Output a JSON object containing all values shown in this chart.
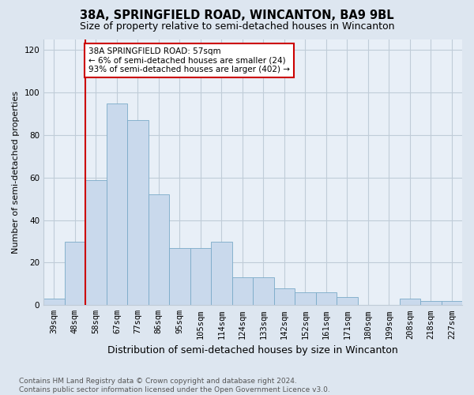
{
  "title": "38A, SPRINGFIELD ROAD, WINCANTON, BA9 9BL",
  "subtitle": "Size of property relative to semi-detached houses in Wincanton",
  "xlabel": "Distribution of semi-detached houses by size in Wincanton",
  "ylabel": "Number of semi-detached properties",
  "categories": [
    "39sqm",
    "48sqm",
    "58sqm",
    "67sqm",
    "77sqm",
    "86sqm",
    "95sqm",
    "105sqm",
    "114sqm",
    "124sqm",
    "133sqm",
    "142sqm",
    "152sqm",
    "161sqm",
    "171sqm",
    "180sqm",
    "199sqm",
    "208sqm",
    "218sqm",
    "227sqm"
  ],
  "values": [
    3,
    30,
    59,
    95,
    87,
    52,
    27,
    27,
    30,
    13,
    13,
    8,
    6,
    6,
    4,
    0,
    0,
    3,
    2,
    2
  ],
  "bar_color": "#c9d9ec",
  "bar_edge_color": "#7aaac8",
  "vline_bin_index": 2,
  "vline_color": "#cc0000",
  "annotation_text": "38A SPRINGFIELD ROAD: 57sqm\n← 6% of semi-detached houses are smaller (24)\n93% of semi-detached houses are larger (402) →",
  "annotation_box_color": "#ffffff",
  "annotation_box_edge": "#cc0000",
  "ylim": [
    0,
    125
  ],
  "yticks": [
    0,
    20,
    40,
    60,
    80,
    100,
    120
  ],
  "background_color": "#dde6f0",
  "plot_bg_color": "#e8eff7",
  "grid_color": "#c0ccd8",
  "footer_text": "Contains HM Land Registry data © Crown copyright and database right 2024.\nContains public sector information licensed under the Open Government Licence v3.0.",
  "title_fontsize": 10.5,
  "subtitle_fontsize": 9,
  "ylabel_fontsize": 8,
  "xlabel_fontsize": 9,
  "tick_fontsize": 7.5,
  "annotation_fontsize": 7.5,
  "footer_fontsize": 6.5
}
